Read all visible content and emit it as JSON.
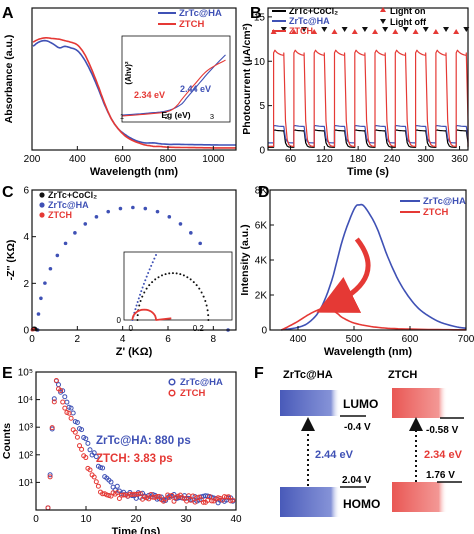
{
  "chart_data": [
    {
      "id": "A",
      "type": "line",
      "panel_label": "A",
      "xlabel": "Wavelength (nm)",
      "ylabel": "Absorbance (a.u.)",
      "xlim": [
        200,
        1100
      ],
      "xticks": [
        200,
        400,
        600,
        800,
        1000
      ],
      "ylim": [
        0,
        1
      ],
      "series": [
        {
          "name": "ZrTc@HA",
          "color": "#3f51b5",
          "x": [
            205,
            230,
            260,
            290,
            320,
            345,
            370,
            400,
            430,
            460,
            490,
            520,
            550,
            580,
            610,
            640,
            670,
            700,
            720,
            740,
            760,
            800,
            850,
            900,
            950,
            1000,
            1050,
            1100
          ],
          "y": [
            0.73,
            0.76,
            0.77,
            0.75,
            0.72,
            0.73,
            0.72,
            0.7,
            0.64,
            0.55,
            0.44,
            0.32,
            0.22,
            0.15,
            0.11,
            0.08,
            0.06,
            0.05,
            0.05,
            0.05,
            0.045,
            0.04,
            0.04,
            0.038,
            0.037,
            0.036,
            0.035,
            0.035
          ]
        },
        {
          "name": "ZTCH",
          "color": "#e53935",
          "x": [
            205,
            230,
            260,
            290,
            320,
            345,
            370,
            400,
            430,
            460,
            490,
            520,
            550,
            580,
            610,
            640,
            670,
            700,
            720,
            740,
            760,
            800,
            850,
            900,
            950,
            1000,
            1050,
            1100
          ],
          "y": [
            0.76,
            0.78,
            0.79,
            0.785,
            0.78,
            0.77,
            0.76,
            0.74,
            0.68,
            0.58,
            0.46,
            0.33,
            0.22,
            0.15,
            0.1,
            0.07,
            0.05,
            0.035,
            0.03,
            0.025,
            0.025,
            0.02,
            0.018,
            0.017,
            0.016,
            0.015,
            0.015,
            0.015
          ]
        }
      ],
      "inset": {
        "xlabel": "Eg (eV)",
        "ylabel": "(Ahv)²",
        "xticks": [
          1,
          2,
          3
        ],
        "xlim": [
          1,
          3.4
        ],
        "ylim": [
          0,
          1
        ],
        "annotations": [
          {
            "text": "2.34 eV",
            "color": "#e53935"
          },
          {
            "text": "2.44 eV",
            "color": "#3f51b5"
          }
        ],
        "series": [
          {
            "name": "ZrTc@HA",
            "color": "#3f51b5",
            "x": [
              1.0,
              1.5,
              2.0,
              2.3,
              2.44,
              2.7,
              3.0,
              3.3
            ],
            "y": [
              0.08,
              0.1,
              0.13,
              0.2,
              0.28,
              0.44,
              0.62,
              0.78
            ]
          },
          {
            "name": "ZTCH",
            "color": "#e53935",
            "x": [
              1.0,
              1.5,
              2.0,
              2.2,
              2.34,
              2.6,
              2.9,
              3.3
            ],
            "y": [
              0.07,
              0.09,
              0.12,
              0.18,
              0.27,
              0.43,
              0.6,
              0.72
            ]
          }
        ]
      }
    },
    {
      "id": "B",
      "type": "line",
      "panel_label": "B",
      "xlabel": "Time (s)",
      "ylabel": "Photocurrent (μA/cm²)",
      "xlim": [
        20,
        375
      ],
      "xticks": [
        60,
        120,
        180,
        240,
        300,
        360
      ],
      "ylim": [
        0,
        16
      ],
      "yticks": [
        0,
        5,
        10,
        15
      ],
      "legend": [
        "ZrTc+CoCl₂",
        "ZrTc@HA",
        "ZTCH"
      ],
      "legend_markers": [
        "Light on",
        "Light off"
      ],
      "periods": {
        "start": 30,
        "period": 36,
        "on_duration": 18,
        "cycles": 10
      },
      "series": [
        {
          "name": "ZrTc+CoCl₂",
          "color": "#000000",
          "high": 2.3,
          "low": 0.3
        },
        {
          "name": "ZrTc@HA",
          "color": "#3f51b5",
          "high": 2.8,
          "low": 0.8
        },
        {
          "name": "ZTCH",
          "color": "#e53935",
          "high": 11.5,
          "low": 0.4
        }
      ]
    },
    {
      "id": "C",
      "type": "scatter",
      "panel_label": "C",
      "xlabel": "Z' (KΩ)",
      "ylabel": "-Z'' (KΩ)",
      "xlim": [
        0,
        9
      ],
      "xticks": [
        0,
        2,
        4,
        6,
        8
      ],
      "ylim": [
        0,
        6
      ],
      "yticks": [
        0,
        2,
        4,
        6
      ],
      "legend": [
        "ZrTc+CoCl₂",
        "ZrTc@HA",
        "ZTCH"
      ],
      "series": [
        {
          "name": "ZrTc+CoCl₂",
          "color": "#111111",
          "type": "arc",
          "center": 0.1,
          "radius": 0.09
        },
        {
          "name": "ZrTc@HA",
          "color": "#3f51b5",
          "type": "arc",
          "center": 4.45,
          "radius": 4.2
        },
        {
          "name": "ZTCH",
          "color": "#e53935",
          "type": "arc",
          "center": 0.04,
          "radius": 0.035
        }
      ],
      "inset": {
        "xticks": [
          0,
          0.2
        ],
        "yticks": [
          0
        ],
        "xlim": [
          -0.02,
          0.3
        ],
        "ylim": [
          0,
          0.16
        ],
        "series": [
          {
            "name": "ZrTc+CoCl₂",
            "color": "#111111",
            "type": "arc",
            "center": 0.125,
            "radius": 0.105
          },
          {
            "name": "ZrTc@HA",
            "color": "#3f51b5",
            "type": "steep"
          },
          {
            "name": "ZTCH",
            "color": "#e53935",
            "type": "arc",
            "center": 0.04,
            "radius": 0.035
          }
        ]
      }
    },
    {
      "id": "D",
      "type": "line",
      "panel_label": "D",
      "xlabel": "Wavelength (nm)",
      "ylabel": "Intensity (a.u.)",
      "xlim": [
        350,
        700
      ],
      "xticks": [
        400,
        500,
        600,
        700
      ],
      "ylim": [
        0,
        8000
      ],
      "yticks": [
        0,
        2000,
        4000,
        6000,
        8000
      ],
      "ytick_labels": [
        "0",
        "2K",
        "4K",
        "6K",
        "8K"
      ],
      "legend": [
        "ZrTc@HA",
        "ZTCH"
      ],
      "series": [
        {
          "name": "ZrTc@HA",
          "color": "#3f51b5",
          "x": [
            370,
            400,
            420,
            440,
            460,
            480,
            500,
            510,
            520,
            540,
            560,
            580,
            600,
            620,
            650,
            680,
            700
          ],
          "y": [
            0,
            150,
            450,
            1200,
            2800,
            5200,
            6900,
            7150,
            7000,
            5900,
            4200,
            2800,
            1800,
            1100,
            500,
            200,
            100
          ]
        },
        {
          "name": "ZTCH",
          "color": "#e53935",
          "x": [
            370,
            380,
            400,
            420,
            440,
            450,
            460,
            470,
            480,
            500,
            530,
            560,
            600,
            650,
            700
          ],
          "y": [
            0,
            150,
            500,
            900,
            1200,
            1250,
            1150,
            950,
            700,
            400,
            200,
            100,
            50,
            20,
            10
          ]
        }
      ]
    },
    {
      "id": "E",
      "type": "scatter",
      "panel_label": "E",
      "xlabel": "Time (ns)",
      "ylabel": "Counts",
      "yscale": "log",
      "xlim": [
        0,
        40
      ],
      "xticks": [
        0,
        10,
        20,
        30,
        40
      ],
      "ylim": [
        1,
        100000
      ],
      "yticks": [
        10,
        100,
        1000,
        10000,
        100000
      ],
      "ytick_labels": [
        "10¹",
        "10²",
        "10³",
        "10⁴",
        "10⁵"
      ],
      "legend": [
        "ZrTc@HA",
        "ZTCH"
      ],
      "annotations": [
        {
          "text": "ZrTc@HA: 880 ps",
          "color": "#3f51b5"
        },
        {
          "text": "ZTCH: 3.83 ps",
          "color": "#e53935"
        }
      ],
      "series": [
        {
          "name": "ZrTc@HA",
          "color": "#3f51b5",
          "peak_x": 4.0,
          "peak_y": 50000,
          "tau": 1.2,
          "baseline": 3.5
        },
        {
          "name": "ZTCH",
          "color": "#e53935",
          "peak_x": 4.0,
          "peak_y": 45000,
          "tau": 0.9,
          "baseline": 3.0
        }
      ]
    }
  ],
  "panelF": {
    "label": "F",
    "left_title": "ZrTc@HA",
    "right_title": "ZTCH",
    "lumo_label": "LUMO",
    "homo_label": "HOMO",
    "left_lumo_v": "-0.4 V",
    "left_homo_v": "2.04 V",
    "left_gap": "2.44 eV",
    "right_lumo_v": "-0.58 V",
    "right_homo_v": "1.76 V",
    "right_gap": "2.34 eV",
    "colors": {
      "blue": "#3f51b5",
      "red": "#e53935"
    }
  }
}
